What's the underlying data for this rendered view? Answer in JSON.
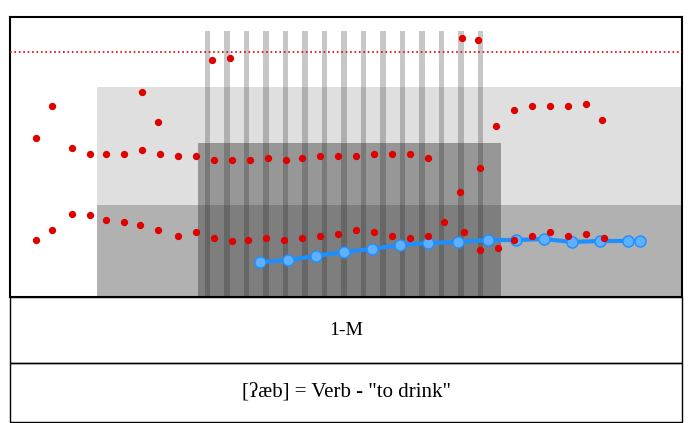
{
  "chart_data": {
    "type": "scatter",
    "xlim": [
      0,
      672
    ],
    "ylim": [
      0,
      280
    ],
    "tick_labels": false,
    "grid": false,
    "label": "1-M",
    "caption": "[ʔæb] = Verb - \"to drink\"",
    "series": [
      {
        "type": "scatter",
        "color": "#e00000",
        "marker": "o",
        "x": [
          26,
          42,
          62,
          80,
          96,
          114,
          130,
          148,
          168,
          186,
          204,
          222,
          238,
          256,
          274,
          292,
          310,
          328,
          346,
          364,
          382,
          400,
          418,
          434,
          454,
          470,
          488,
          504,
          522,
          540,
          558,
          576,
          594
        ],
        "values": [
          57,
          67,
          83,
          82,
          77,
          75,
          72,
          67,
          61,
          65,
          59,
          56,
          57,
          59,
          57,
          59,
          61,
          63,
          67,
          65,
          61,
          59,
          61,
          75,
          65,
          47,
          49,
          57,
          61,
          65,
          61,
          63,
          59
        ]
      },
      {
        "type": "scatter",
        "color": "#e00000",
        "marker": "o",
        "x": [
          26,
          62,
          80,
          96,
          114,
          132,
          150,
          168,
          186,
          204,
          222,
          240,
          258,
          276,
          292,
          310,
          328,
          346,
          364,
          382,
          400,
          418,
          450,
          470,
          486,
          504,
          522,
          540,
          558,
          576,
          592
        ],
        "values": [
          159,
          149,
          143,
          143,
          143,
          147,
          143,
          141,
          141,
          137,
          137,
          137,
          139,
          137,
          139,
          141,
          141,
          141,
          143,
          143,
          143,
          139,
          105,
          129,
          171,
          187,
          191,
          191,
          191,
          193,
          177
        ]
      },
      {
        "type": "scatter",
        "color": "#e00000",
        "marker": "o",
        "x": [
          42,
          132,
          148,
          202,
          220,
          452,
          468
        ],
        "values": [
          191,
          205,
          175,
          237,
          239,
          259,
          257
        ]
      },
      {
        "type": "line",
        "color": "#e00000",
        "line_style": "dotted",
        "x": [
          0,
          672
        ],
        "values": [
          245,
          245
        ]
      },
      {
        "type": "line",
        "color": "#1e8fff",
        "marker": "o",
        "x": [
          250,
          278,
          306,
          334,
          362,
          390,
          418,
          448,
          478,
          506,
          534,
          562,
          590,
          618,
          630
        ],
        "values": [
          35,
          37,
          41,
          45,
          48,
          52,
          54,
          55,
          57,
          57,
          58,
          55,
          56,
          56,
          56
        ]
      }
    ]
  }
}
